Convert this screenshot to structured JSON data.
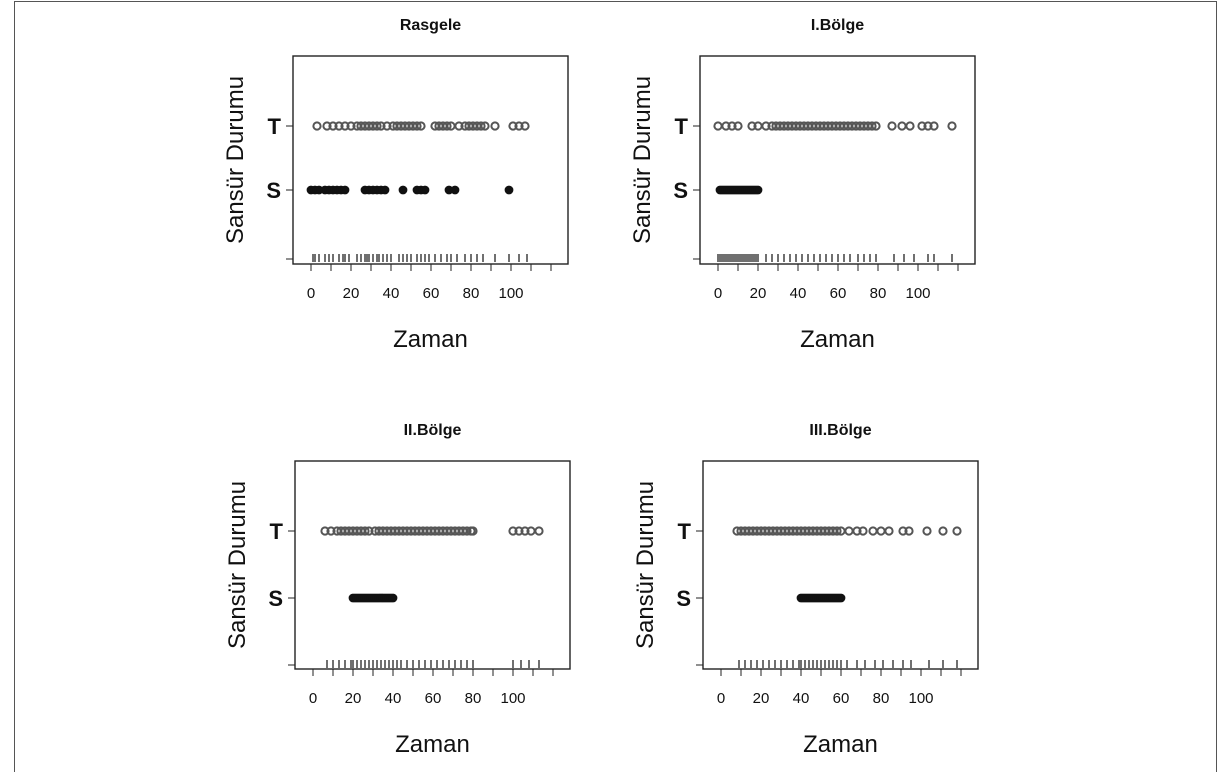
{
  "chart_data": [
    {
      "type": "scatter",
      "title": "Rasgele",
      "xlabel": "Zaman",
      "ylabel": "Sansür Durumu",
      "xticks": [
        0,
        20,
        40,
        60,
        80,
        100
      ],
      "xlim": [
        -3,
        123
      ],
      "categories": [
        "S",
        "T"
      ],
      "series": [
        {
          "name": "T",
          "x": [
            3,
            8,
            11,
            14,
            17,
            20,
            23,
            25,
            27,
            29,
            31,
            33,
            35,
            38,
            41,
            43,
            45,
            47,
            49,
            51,
            53,
            55,
            62,
            64,
            66,
            68,
            70,
            74,
            77,
            79,
            81,
            83,
            85,
            87,
            92,
            101,
            104,
            107
          ]
        },
        {
          "name": "S",
          "x": [
            0,
            2,
            4,
            7,
            9,
            11,
            13,
            15,
            17,
            27,
            29,
            31,
            33,
            35,
            37,
            46,
            53,
            55,
            57,
            69,
            72,
            99
          ]
        }
      ],
      "rug": [
        1,
        2,
        4,
        7,
        9,
        11,
        14,
        16,
        17,
        19,
        23,
        25,
        27,
        28,
        29,
        31,
        33,
        34,
        36,
        38,
        40,
        44,
        46,
        48,
        50,
        53,
        55,
        57,
        59,
        62,
        65,
        68,
        70,
        73,
        77,
        80,
        83,
        86,
        92,
        99,
        104,
        108
      ]
    },
    {
      "type": "scatter",
      "title": "I.Bölge",
      "xlabel": "Zaman",
      "ylabel": "Sansür Durumu",
      "xticks": [
        0,
        20,
        40,
        60,
        80,
        100
      ],
      "xlim": [
        -3,
        123
      ],
      "categories": [
        "S",
        "T"
      ],
      "series": [
        {
          "name": "T",
          "x": [
            0,
            4,
            7,
            10,
            17,
            20,
            24,
            27,
            29,
            31,
            33,
            35,
            37,
            39,
            41,
            43,
            45,
            47,
            49,
            51,
            53,
            55,
            57,
            59,
            61,
            63,
            65,
            67,
            69,
            71,
            73,
            75,
            77,
            79,
            87,
            92,
            96,
            102,
            105,
            108,
            117
          ]
        },
        {
          "name": "S",
          "x": [
            1,
            2,
            3,
            4,
            5,
            6,
            7,
            8,
            9,
            10,
            11,
            12,
            13,
            14,
            15,
            16,
            17,
            18,
            19,
            20
          ]
        }
      ],
      "rug": [
        0,
        1,
        2,
        3,
        4,
        5,
        6,
        7,
        8,
        9,
        10,
        11,
        12,
        13,
        14,
        15,
        16,
        17,
        18,
        19,
        20,
        24,
        27,
        30,
        33,
        36,
        39,
        42,
        45,
        48,
        51,
        54,
        57,
        60,
        63,
        66,
        70,
        73,
        76,
        79,
        88,
        93,
        98,
        105,
        108,
        117
      ]
    },
    {
      "type": "scatter",
      "title": "II.Bölge",
      "xlabel": "Zaman",
      "ylabel": "Sansür Durumu",
      "xticks": [
        0,
        20,
        40,
        60,
        80,
        100
      ],
      "xlim": [
        -3,
        123
      ],
      "categories": [
        "S",
        "T"
      ],
      "series": [
        {
          "name": "T",
          "x": [
            6,
            9,
            12,
            14,
            16,
            18,
            20,
            22,
            24,
            26,
            28,
            31,
            33,
            35,
            37,
            39,
            41,
            43,
            45,
            47,
            49,
            51,
            53,
            55,
            57,
            59,
            61,
            63,
            65,
            67,
            69,
            71,
            73,
            75,
            77,
            79,
            80,
            100,
            103,
            106,
            109,
            113
          ]
        },
        {
          "name": "S",
          "x": [
            20,
            21,
            22,
            23,
            24,
            25,
            26,
            27,
            28,
            29,
            30,
            31,
            32,
            33,
            34,
            35,
            36,
            37,
            38,
            39,
            40
          ]
        }
      ],
      "rug": [
        7,
        10,
        13,
        16,
        19,
        20,
        22,
        24,
        26,
        28,
        30,
        32,
        34,
        36,
        38,
        40,
        42,
        44,
        47,
        50,
        53,
        56,
        59,
        62,
        65,
        68,
        71,
        74,
        77,
        80,
        100,
        104,
        108,
        113
      ]
    },
    {
      "type": "scatter",
      "title": "III.Bölge",
      "xlabel": "Zaman",
      "ylabel": "Sansür Durumu",
      "xticks": [
        0,
        20,
        40,
        60,
        80,
        100
      ],
      "xlim": [
        -3,
        123
      ],
      "categories": [
        "S",
        "T"
      ],
      "series": [
        {
          "name": "T",
          "x": [
            8,
            10,
            12,
            14,
            16,
            18,
            20,
            22,
            24,
            26,
            28,
            30,
            32,
            34,
            36,
            38,
            40,
            42,
            44,
            46,
            48,
            50,
            52,
            54,
            56,
            58,
            60,
            64,
            68,
            71,
            76,
            80,
            84,
            91,
            94,
            103,
            111,
            118
          ]
        },
        {
          "name": "S",
          "x": [
            40,
            41,
            42,
            43,
            44,
            45,
            46,
            47,
            48,
            49,
            50,
            51,
            52,
            53,
            54,
            55,
            56,
            57,
            58,
            59,
            60
          ]
        }
      ],
      "rug": [
        9,
        12,
        15,
        18,
        21,
        24,
        27,
        30,
        33,
        36,
        39,
        40,
        42,
        44,
        46,
        48,
        50,
        52,
        54,
        56,
        58,
        60,
        63,
        68,
        72,
        77,
        81,
        86,
        91,
        95,
        104,
        111,
        118
      ]
    }
  ]
}
